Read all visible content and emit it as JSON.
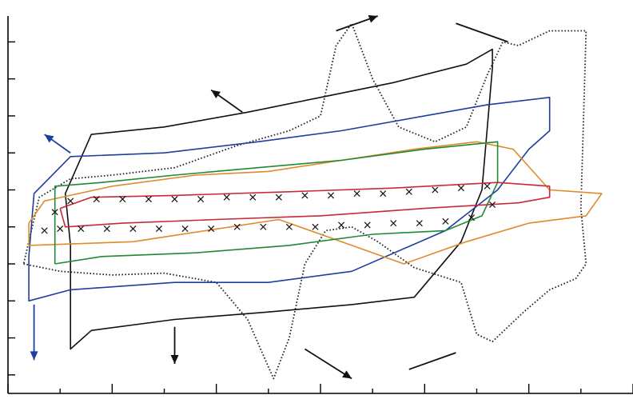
{
  "chart_data": {
    "type": "line",
    "title": "",
    "xlabel": "",
    "ylabel": "",
    "tick_labels": {
      "x": [],
      "y": []
    },
    "grid": false,
    "legend": "none",
    "xlim": [
      0,
      6
    ],
    "ylim": [
      -5,
      5.2
    ],
    "series": [
      {
        "id": "black-dotted",
        "color": "#222222",
        "style": "dotted",
        "marker": "none",
        "points": [
          [
            0.15,
            -1.5
          ],
          [
            0.5,
            -1.7
          ],
          [
            1.0,
            -1.8
          ],
          [
            1.5,
            -1.75
          ],
          [
            2.0,
            -2.0
          ],
          [
            2.3,
            -3.0
          ],
          [
            2.55,
            -4.6
          ],
          [
            2.7,
            -3.5
          ],
          [
            2.85,
            -1.5
          ],
          [
            3.05,
            -0.6
          ],
          [
            3.3,
            -0.5
          ],
          [
            3.55,
            -0.9
          ],
          [
            3.9,
            -1.6
          ],
          [
            4.35,
            -2.0
          ],
          [
            4.5,
            -3.4
          ],
          [
            4.65,
            -3.6
          ],
          [
            4.95,
            -2.8
          ],
          [
            5.2,
            -2.2
          ],
          [
            5.45,
            -1.9
          ],
          [
            5.55,
            -1.5
          ],
          [
            5.5,
            0
          ],
          [
            5.55,
            4.8
          ],
          [
            5.2,
            4.8
          ],
          [
            4.9,
            4.4
          ],
          [
            4.75,
            4.5
          ],
          [
            4.6,
            3.6
          ],
          [
            4.4,
            2.2
          ],
          [
            4.1,
            1.8
          ],
          [
            3.75,
            2.2
          ],
          [
            3.5,
            3.5
          ],
          [
            3.3,
            5.0
          ],
          [
            3.15,
            4.4
          ],
          [
            3.0,
            2.5
          ],
          [
            2.7,
            2.1
          ],
          [
            2.2,
            1.7
          ],
          [
            1.6,
            1.1
          ],
          [
            1.0,
            0.9
          ],
          [
            0.6,
            0.8
          ],
          [
            0.3,
            0.3
          ],
          [
            0.15,
            -1.5
          ]
        ]
      },
      {
        "id": "black-solid",
        "color": "#111111",
        "style": "solid",
        "marker": "none",
        "points": [
          [
            0.6,
            -1.0
          ],
          [
            0.55,
            0.4
          ],
          [
            0.8,
            2.0
          ],
          [
            1.5,
            2.2
          ],
          [
            2.3,
            2.6
          ],
          [
            3.0,
            3.0
          ],
          [
            3.7,
            3.4
          ],
          [
            4.4,
            3.9
          ],
          [
            4.65,
            4.3
          ],
          [
            4.65,
            3.8
          ],
          [
            4.55,
            0.5
          ],
          [
            4.35,
            -0.9
          ],
          [
            3.9,
            -2.4
          ],
          [
            3.3,
            -2.6
          ],
          [
            2.5,
            -2.8
          ],
          [
            1.6,
            -3.0
          ],
          [
            0.8,
            -3.3
          ],
          [
            0.6,
            -3.8
          ],
          [
            0.6,
            -1.0
          ]
        ]
      },
      {
        "id": "blue",
        "color": "#1f3e9e",
        "style": "solid",
        "marker": "none",
        "points": [
          [
            0.2,
            -1.3
          ],
          [
            0.25,
            0.4
          ],
          [
            0.6,
            1.4
          ],
          [
            1.5,
            1.5
          ],
          [
            2.4,
            1.8
          ],
          [
            3.2,
            2.1
          ],
          [
            4.0,
            2.5
          ],
          [
            4.6,
            2.8
          ],
          [
            5.2,
            3.0
          ],
          [
            5.2,
            2.1
          ],
          [
            5.0,
            1.6
          ],
          [
            4.7,
            0.5
          ],
          [
            4.2,
            -0.6
          ],
          [
            3.3,
            -1.7
          ],
          [
            2.5,
            -2.0
          ],
          [
            1.6,
            -2.0
          ],
          [
            0.6,
            -2.2
          ],
          [
            0.2,
            -2.5
          ],
          [
            0.2,
            -1.3
          ]
        ]
      },
      {
        "id": "orange",
        "color": "#e08a2a",
        "style": "solid",
        "marker": "none",
        "points": [
          [
            0.2,
            -0.4
          ],
          [
            0.35,
            0.2
          ],
          [
            1.0,
            0.6
          ],
          [
            1.8,
            0.9
          ],
          [
            2.5,
            1.0
          ],
          [
            3.2,
            1.3
          ],
          [
            3.9,
            1.6
          ],
          [
            4.5,
            1.8
          ],
          [
            4.85,
            1.6
          ],
          [
            5.2,
            0.5
          ],
          [
            5.7,
            0.4
          ],
          [
            5.55,
            -0.2
          ],
          [
            5.0,
            -0.4
          ],
          [
            4.4,
            -0.9
          ],
          [
            3.8,
            -1.5
          ],
          [
            3.2,
            -0.9
          ],
          [
            2.6,
            -0.3
          ],
          [
            1.9,
            -0.6
          ],
          [
            1.2,
            -0.9
          ],
          [
            0.2,
            -1.0
          ],
          [
            0.2,
            -0.4
          ]
        ]
      },
      {
        "id": "green",
        "color": "#1f8a35",
        "style": "solid",
        "marker": "none",
        "points": [
          [
            0.45,
            -1.5
          ],
          [
            0.45,
            0.6
          ],
          [
            0.9,
            0.7
          ],
          [
            1.6,
            0.9
          ],
          [
            2.4,
            1.1
          ],
          [
            3.2,
            1.3
          ],
          [
            4.0,
            1.6
          ],
          [
            4.7,
            1.8
          ],
          [
            4.7,
            0.7
          ],
          [
            4.55,
            -0.2
          ],
          [
            4.2,
            -0.6
          ],
          [
            3.5,
            -0.7
          ],
          [
            2.7,
            -1.0
          ],
          [
            1.8,
            -1.2
          ],
          [
            0.9,
            -1.3
          ],
          [
            0.45,
            -1.5
          ]
        ]
      },
      {
        "id": "red",
        "color": "#c8283a",
        "style": "solid",
        "marker": "none",
        "points": [
          [
            0.5,
            0.0
          ],
          [
            0.55,
            -0.5
          ],
          [
            1.1,
            -0.4
          ],
          [
            2.0,
            -0.3
          ],
          [
            3.0,
            -0.2
          ],
          [
            4.0,
            0.0
          ],
          [
            4.9,
            0.15
          ],
          [
            5.2,
            0.3
          ],
          [
            5.2,
            0.6
          ],
          [
            4.7,
            0.7
          ],
          [
            3.7,
            0.55
          ],
          [
            2.7,
            0.45
          ],
          [
            1.6,
            0.35
          ],
          [
            0.8,
            0.3
          ],
          [
            0.5,
            0.0
          ]
        ]
      },
      {
        "id": "black-x-markers",
        "color": "#111111",
        "style": "none",
        "marker": "x",
        "points": [
          [
            0.35,
            -0.6
          ],
          [
            0.45,
            -0.1
          ],
          [
            0.6,
            0.2
          ],
          [
            0.85,
            0.25
          ],
          [
            1.1,
            0.25
          ],
          [
            1.35,
            0.25
          ],
          [
            1.6,
            0.25
          ],
          [
            1.85,
            0.25
          ],
          [
            2.1,
            0.3
          ],
          [
            2.35,
            0.3
          ],
          [
            2.6,
            0.3
          ],
          [
            2.85,
            0.35
          ],
          [
            3.1,
            0.35
          ],
          [
            3.35,
            0.4
          ],
          [
            3.6,
            0.4
          ],
          [
            3.85,
            0.45
          ],
          [
            4.1,
            0.5
          ],
          [
            4.35,
            0.55
          ],
          [
            4.6,
            0.6
          ],
          [
            4.65,
            0.1
          ],
          [
            4.45,
            -0.25
          ],
          [
            4.2,
            -0.35
          ],
          [
            3.95,
            -0.4
          ],
          [
            3.7,
            -0.4
          ],
          [
            3.45,
            -0.45
          ],
          [
            3.2,
            -0.45
          ],
          [
            2.95,
            -0.5
          ],
          [
            2.7,
            -0.5
          ],
          [
            2.45,
            -0.5
          ],
          [
            2.2,
            -0.5
          ],
          [
            1.95,
            -0.55
          ],
          [
            1.7,
            -0.55
          ],
          [
            1.45,
            -0.55
          ],
          [
            1.2,
            -0.55
          ],
          [
            0.95,
            -0.55
          ],
          [
            0.7,
            -0.55
          ],
          [
            0.5,
            -0.55
          ]
        ]
      }
    ],
    "annotations": [
      {
        "type": "arrow",
        "color": "#111111",
        "from": [
          3.15,
          4.8
        ],
        "to": [
          3.55,
          5.2
        ]
      },
      {
        "type": "line",
        "color": "#111111",
        "from": [
          4.3,
          5.0
        ],
        "to": [
          4.8,
          4.5
        ]
      },
      {
        "type": "arrow",
        "color": "#111111",
        "from": [
          2.25,
          2.6
        ],
        "to": [
          1.95,
          3.2
        ]
      },
      {
        "type": "arrow",
        "color": "#1f3e9e",
        "from": [
          0.6,
          1.5
        ],
        "to": [
          0.35,
          2.0
        ]
      },
      {
        "type": "arrow",
        "color": "#1f3e9e",
        "from": [
          0.25,
          -2.6
        ],
        "to": [
          0.25,
          -4.1
        ]
      },
      {
        "type": "arrow",
        "color": "#111111",
        "from": [
          1.6,
          -3.2
        ],
        "to": [
          1.6,
          -4.2
        ]
      },
      {
        "type": "arrow",
        "color": "#111111",
        "from": [
          2.85,
          -3.8
        ],
        "to": [
          3.3,
          -4.6
        ]
      },
      {
        "type": "line",
        "color": "#111111",
        "from": [
          3.85,
          -4.35
        ],
        "to": [
          4.3,
          -3.9
        ]
      }
    ]
  }
}
